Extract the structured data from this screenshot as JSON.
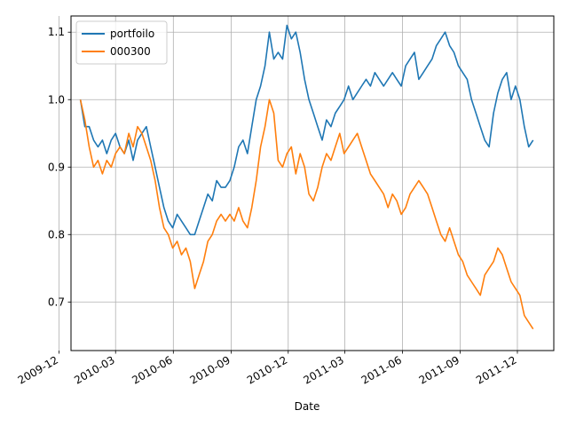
{
  "chart_data": {
    "type": "line",
    "xlabel": "Date",
    "ylabel": "",
    "title": "",
    "grid": true,
    "legend_position": "top-left",
    "xlim": [
      "2009-12-20",
      "2012-01-28"
    ],
    "ylim": [
      0.628,
      1.124
    ],
    "x_ticks": [
      "2009-12",
      "2010-03",
      "2010-06",
      "2010-09",
      "2010-12",
      "2011-03",
      "2011-06",
      "2011-09",
      "2011-12"
    ],
    "y_ticks": [
      0.7,
      0.8,
      0.9,
      1.0,
      1.1
    ],
    "y_tick_labels": [
      "0.7",
      "0.8",
      "0.9",
      "1.0",
      "1.1"
    ],
    "colors": {
      "portfolio": "#1f77b4",
      "benchmark": "#ff7f0e"
    },
    "series": [
      {
        "name": "portfoilo",
        "dates": [
          "2010-01-04",
          "2010-01-11",
          "2010-01-18",
          "2010-01-25",
          "2010-02-01",
          "2010-02-08",
          "2010-02-15",
          "2010-02-22",
          "2010-03-01",
          "2010-03-08",
          "2010-03-15",
          "2010-03-22",
          "2010-03-29",
          "2010-04-05",
          "2010-04-12",
          "2010-04-19",
          "2010-04-26",
          "2010-05-03",
          "2010-05-10",
          "2010-05-17",
          "2010-05-24",
          "2010-05-31",
          "2010-06-07",
          "2010-06-14",
          "2010-06-21",
          "2010-06-28",
          "2010-07-05",
          "2010-07-12",
          "2010-07-19",
          "2010-07-26",
          "2010-08-02",
          "2010-08-09",
          "2010-08-16",
          "2010-08-23",
          "2010-08-30",
          "2010-09-06",
          "2010-09-13",
          "2010-09-20",
          "2010-09-27",
          "2010-10-04",
          "2010-10-11",
          "2010-10-18",
          "2010-10-25",
          "2010-11-01",
          "2010-11-08",
          "2010-11-15",
          "2010-11-22",
          "2010-11-29",
          "2010-12-06",
          "2010-12-13",
          "2010-12-20",
          "2010-12-27",
          "2011-01-03",
          "2011-01-10",
          "2011-01-17",
          "2011-01-24",
          "2011-01-31",
          "2011-02-07",
          "2011-02-14",
          "2011-02-21",
          "2011-02-28",
          "2011-03-07",
          "2011-03-14",
          "2011-03-21",
          "2011-03-28",
          "2011-04-04",
          "2011-04-11",
          "2011-04-18",
          "2011-04-25",
          "2011-05-02",
          "2011-05-09",
          "2011-05-16",
          "2011-05-23",
          "2011-05-30",
          "2011-06-06",
          "2011-06-13",
          "2011-06-20",
          "2011-06-27",
          "2011-07-04",
          "2011-07-11",
          "2011-07-18",
          "2011-07-25",
          "2011-08-01",
          "2011-08-08",
          "2011-08-15",
          "2011-08-22",
          "2011-08-29",
          "2011-09-05",
          "2011-09-12",
          "2011-09-19",
          "2011-09-26",
          "2011-10-03",
          "2011-10-10",
          "2011-10-17",
          "2011-10-24",
          "2011-10-31",
          "2011-11-07",
          "2011-11-14",
          "2011-11-21",
          "2011-11-28",
          "2011-12-05",
          "2011-12-12",
          "2011-12-19",
          "2011-12-26"
        ],
        "values": [
          1.0,
          0.96,
          0.96,
          0.94,
          0.93,
          0.94,
          0.92,
          0.94,
          0.95,
          0.93,
          0.92,
          0.94,
          0.91,
          0.94,
          0.95,
          0.96,
          0.93,
          0.9,
          0.87,
          0.84,
          0.82,
          0.81,
          0.83,
          0.82,
          0.81,
          0.8,
          0.8,
          0.82,
          0.84,
          0.86,
          0.85,
          0.88,
          0.87,
          0.87,
          0.88,
          0.9,
          0.93,
          0.94,
          0.92,
          0.96,
          1.0,
          1.02,
          1.05,
          1.1,
          1.06,
          1.07,
          1.06,
          1.11,
          1.09,
          1.1,
          1.07,
          1.03,
          1.0,
          0.98,
          0.96,
          0.94,
          0.97,
          0.96,
          0.98,
          0.99,
          1.0,
          1.02,
          1.0,
          1.01,
          1.02,
          1.03,
          1.02,
          1.04,
          1.03,
          1.02,
          1.03,
          1.04,
          1.03,
          1.02,
          1.05,
          1.06,
          1.07,
          1.03,
          1.04,
          1.05,
          1.06,
          1.08,
          1.09,
          1.1,
          1.08,
          1.07,
          1.05,
          1.04,
          1.03,
          1.0,
          0.98,
          0.96,
          0.94,
          0.93,
          0.98,
          1.01,
          1.03,
          1.04,
          1.0,
          1.02,
          1.0,
          0.96,
          0.93,
          0.94
        ]
      },
      {
        "name": "000300",
        "dates": [
          "2010-01-04",
          "2010-01-11",
          "2010-01-18",
          "2010-01-25",
          "2010-02-01",
          "2010-02-08",
          "2010-02-15",
          "2010-02-22",
          "2010-03-01",
          "2010-03-08",
          "2010-03-15",
          "2010-03-22",
          "2010-03-29",
          "2010-04-05",
          "2010-04-12",
          "2010-04-19",
          "2010-04-26",
          "2010-05-03",
          "2010-05-10",
          "2010-05-17",
          "2010-05-24",
          "2010-05-31",
          "2010-06-07",
          "2010-06-14",
          "2010-06-21",
          "2010-06-28",
          "2010-07-05",
          "2010-07-12",
          "2010-07-19",
          "2010-07-26",
          "2010-08-02",
          "2010-08-09",
          "2010-08-16",
          "2010-08-23",
          "2010-08-30",
          "2010-09-06",
          "2010-09-13",
          "2010-09-20",
          "2010-09-27",
          "2010-10-04",
          "2010-10-11",
          "2010-10-18",
          "2010-10-25",
          "2010-11-01",
          "2010-11-08",
          "2010-11-15",
          "2010-11-22",
          "2010-11-29",
          "2010-12-06",
          "2010-12-13",
          "2010-12-20",
          "2010-12-27",
          "2011-01-03",
          "2011-01-10",
          "2011-01-17",
          "2011-01-24",
          "2011-01-31",
          "2011-02-07",
          "2011-02-14",
          "2011-02-21",
          "2011-02-28",
          "2011-03-07",
          "2011-03-14",
          "2011-03-21",
          "2011-03-28",
          "2011-04-04",
          "2011-04-11",
          "2011-04-18",
          "2011-04-25",
          "2011-05-02",
          "2011-05-09",
          "2011-05-16",
          "2011-05-23",
          "2011-05-30",
          "2011-06-06",
          "2011-06-13",
          "2011-06-20",
          "2011-06-27",
          "2011-07-04",
          "2011-07-11",
          "2011-07-18",
          "2011-07-25",
          "2011-08-01",
          "2011-08-08",
          "2011-08-15",
          "2011-08-22",
          "2011-08-29",
          "2011-09-05",
          "2011-09-12",
          "2011-09-19",
          "2011-09-26",
          "2011-10-03",
          "2011-10-10",
          "2011-10-17",
          "2011-10-24",
          "2011-10-31",
          "2011-11-07",
          "2011-11-14",
          "2011-11-21",
          "2011-11-28",
          "2011-12-05",
          "2011-12-12",
          "2011-12-19",
          "2011-12-26"
        ],
        "values": [
          1.0,
          0.97,
          0.93,
          0.9,
          0.91,
          0.89,
          0.91,
          0.9,
          0.92,
          0.93,
          0.92,
          0.95,
          0.93,
          0.96,
          0.95,
          0.93,
          0.91,
          0.88,
          0.84,
          0.81,
          0.8,
          0.78,
          0.79,
          0.77,
          0.78,
          0.76,
          0.72,
          0.74,
          0.76,
          0.79,
          0.8,
          0.82,
          0.83,
          0.82,
          0.83,
          0.82,
          0.84,
          0.82,
          0.81,
          0.84,
          0.88,
          0.93,
          0.96,
          1.0,
          0.98,
          0.91,
          0.9,
          0.92,
          0.93,
          0.89,
          0.92,
          0.9,
          0.86,
          0.85,
          0.87,
          0.9,
          0.92,
          0.91,
          0.93,
          0.95,
          0.92,
          0.93,
          0.94,
          0.95,
          0.93,
          0.91,
          0.89,
          0.88,
          0.87,
          0.86,
          0.84,
          0.86,
          0.85,
          0.83,
          0.84,
          0.86,
          0.87,
          0.88,
          0.87,
          0.86,
          0.84,
          0.82,
          0.8,
          0.79,
          0.81,
          0.79,
          0.77,
          0.76,
          0.74,
          0.73,
          0.72,
          0.71,
          0.74,
          0.75,
          0.76,
          0.78,
          0.77,
          0.75,
          0.73,
          0.72,
          0.71,
          0.68,
          0.67,
          0.66
        ]
      }
    ]
  }
}
